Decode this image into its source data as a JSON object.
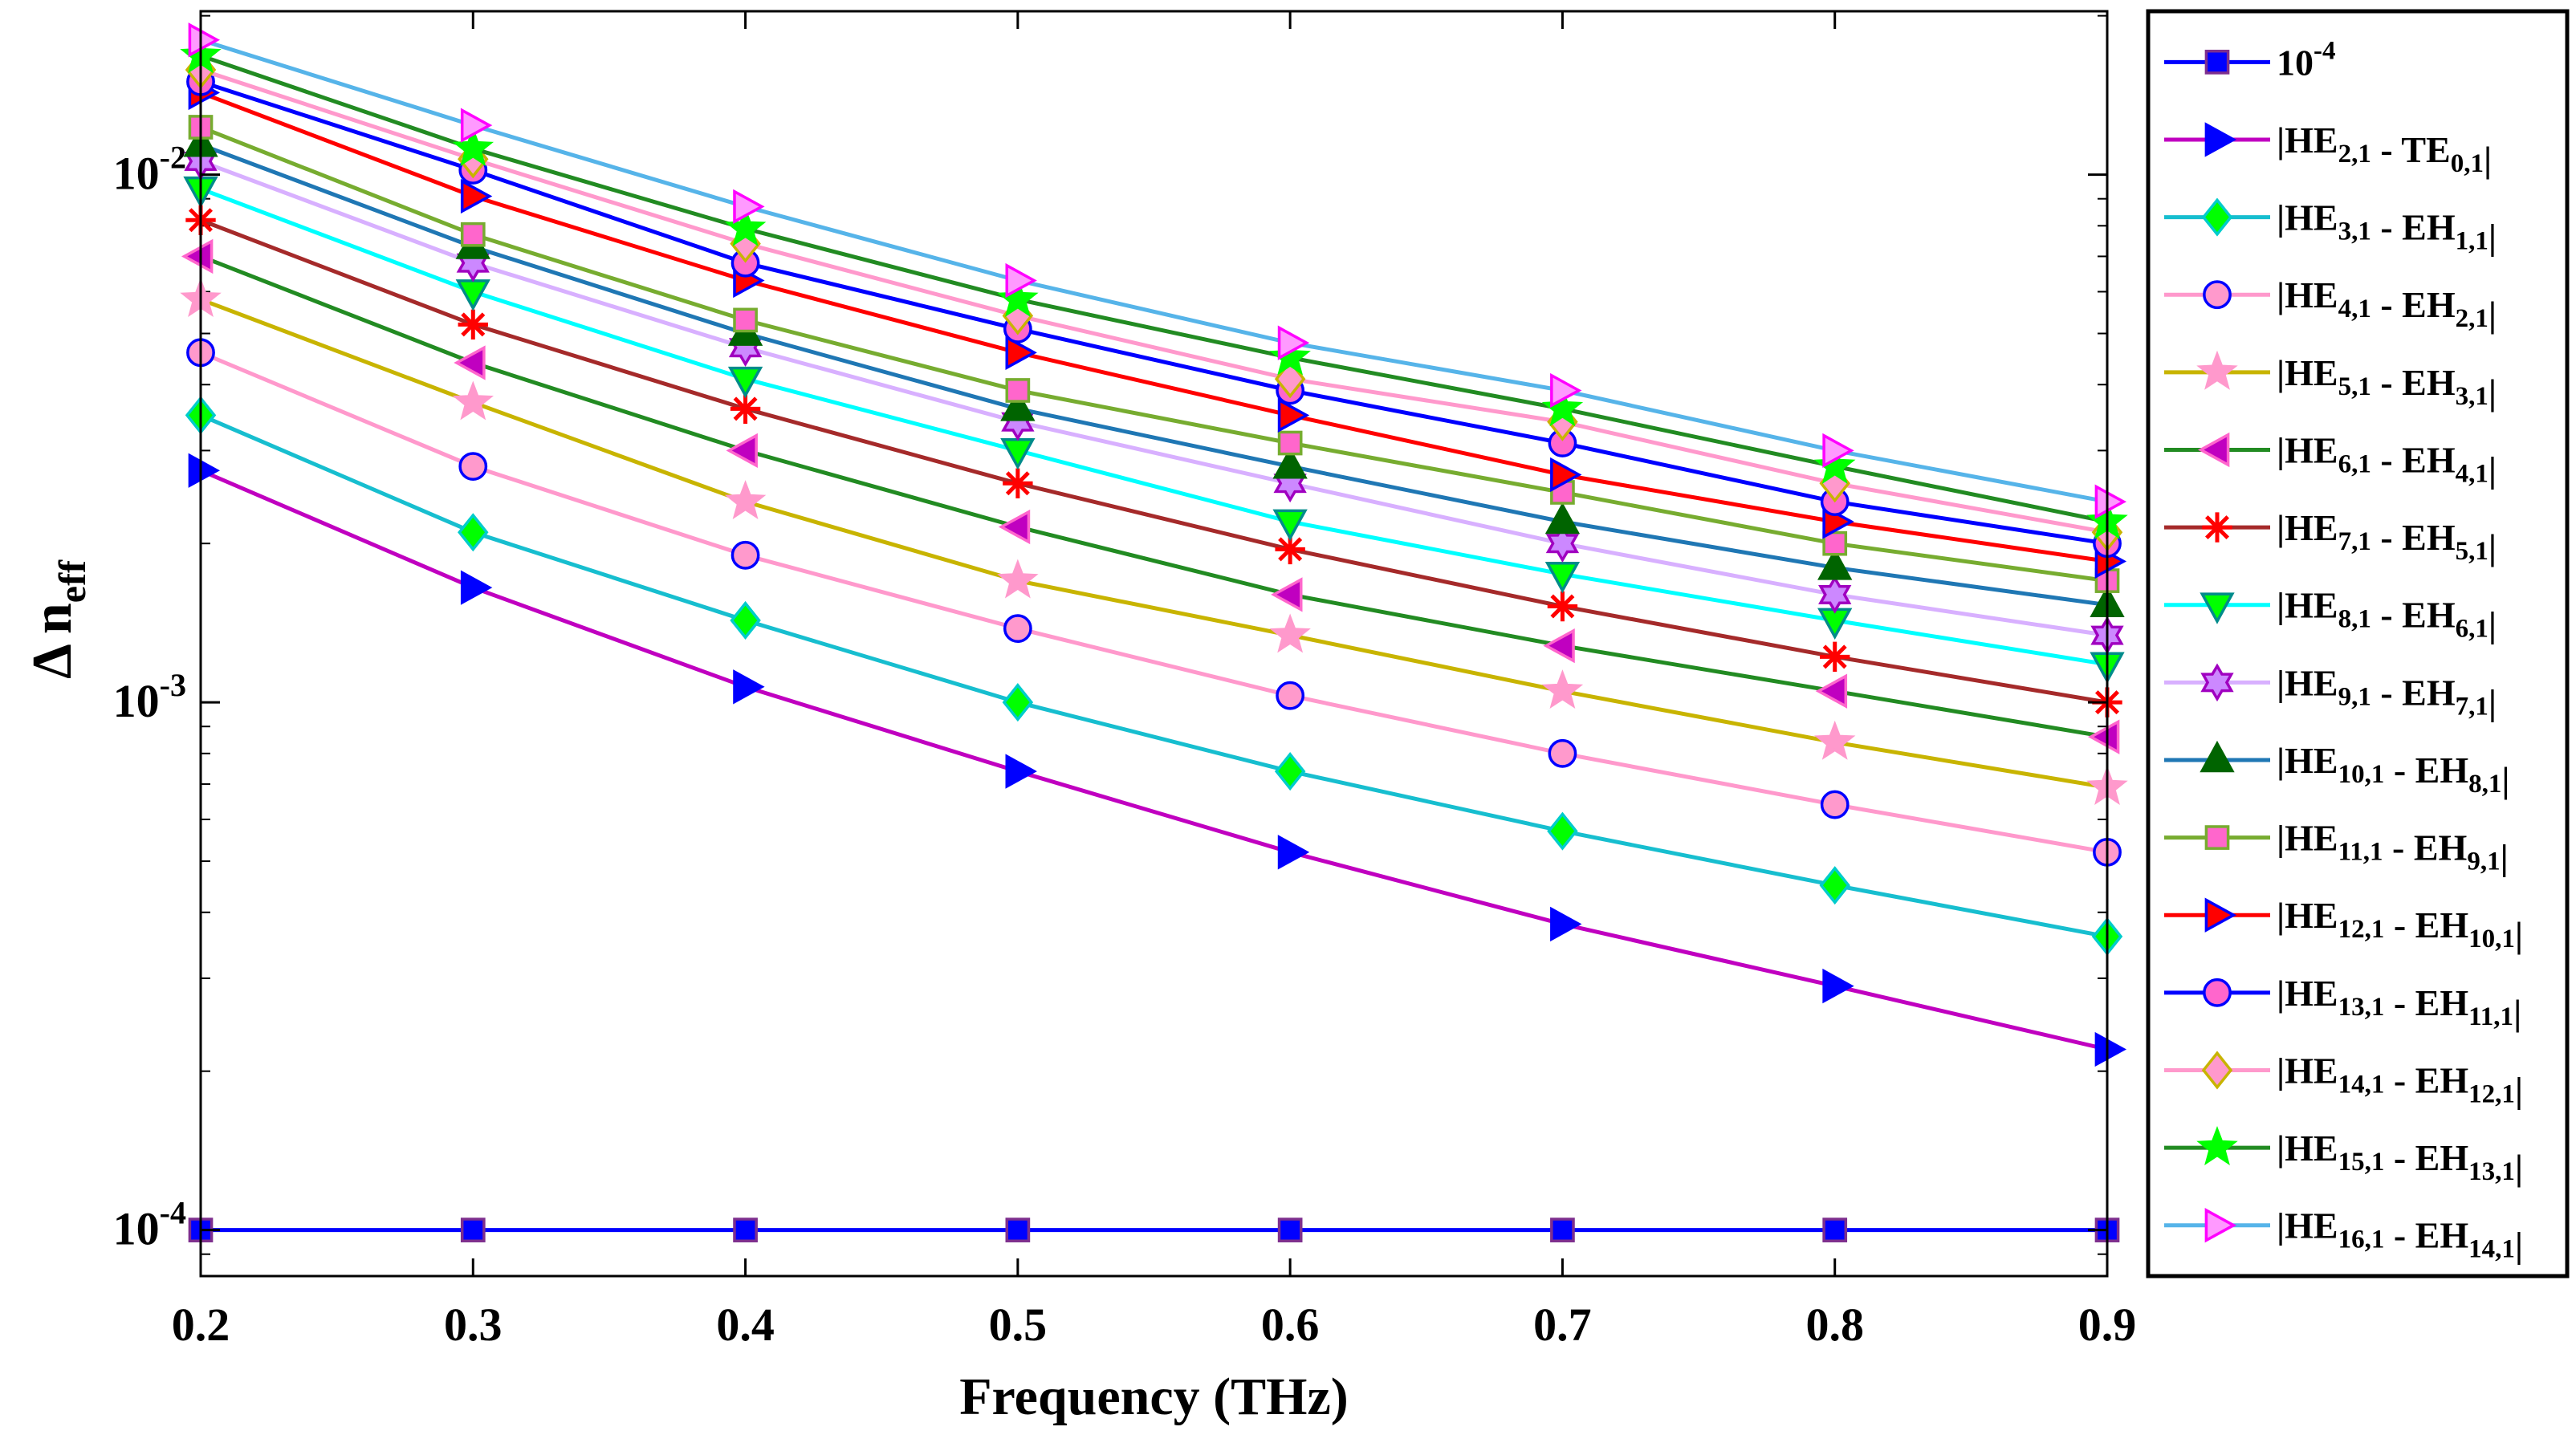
{
  "chart_data": {
    "type": "line",
    "yscale": "log",
    "xlabel": "Frequency (THz)",
    "ylabel": {
      "main": "Δ",
      "base": "n",
      "sub": "eff"
    },
    "x": [
      0.2,
      0.3,
      0.4,
      0.5,
      0.6,
      0.7,
      0.8,
      0.9
    ],
    "xlim": [
      0.2,
      0.9
    ],
    "ylim": [
      8.18e-05,
      0.0204
    ],
    "xticks": [
      {
        "value": 0.2,
        "label": "0.2"
      },
      {
        "value": 0.3,
        "label": "0.3"
      },
      {
        "value": 0.4,
        "label": "0.4"
      },
      {
        "value": 0.5,
        "label": "0.5"
      },
      {
        "value": 0.6,
        "label": "0.6"
      },
      {
        "value": 0.7,
        "label": "0.7"
      },
      {
        "value": 0.8,
        "label": "0.8"
      },
      {
        "value": 0.9,
        "label": "0.9"
      }
    ],
    "yticks": [
      {
        "value": 0.0001,
        "base": "10",
        "exp": "-4"
      },
      {
        "value": 0.001,
        "base": "10",
        "exp": "-3"
      },
      {
        "value": 0.01,
        "base": "10",
        "exp": "-2"
      }
    ],
    "series": [
      {
        "name": "10-4",
        "legend": [
          {
            "t": "10"
          },
          {
            "t": "-4",
            "s": "sup"
          }
        ],
        "color": "#0000ff",
        "marker": "square",
        "markerFill": "#0000ff",
        "markerEdge": "#7e2f8e",
        "values": [
          0.0001,
          0.0001,
          0.0001,
          0.0001,
          0.0001,
          0.0001,
          0.0001,
          0.0001
        ]
      },
      {
        "name": "|HE2,1 - TE0,1|",
        "legend": [
          {
            "t": "|HE"
          },
          {
            "t": "2,1",
            "s": "sub"
          },
          {
            "t": " - TE"
          },
          {
            "t": "0,1",
            "s": "sub"
          },
          {
            "t": "|"
          }
        ],
        "color": "#c000c0",
        "marker": "triangle-right",
        "markerFill": "#0000ff",
        "markerEdge": "#0000ff",
        "values": [
          0.00275,
          0.00165,
          0.00107,
          0.00074,
          0.00052,
          0.00038,
          0.00029,
          0.00022
        ]
      },
      {
        "name": "|HE3,1 - EH1,1|",
        "legend": [
          {
            "t": "|HE"
          },
          {
            "t": "3,1",
            "s": "sub"
          },
          {
            "t": " - EH"
          },
          {
            "t": "1,1",
            "s": "sub"
          },
          {
            "t": "|"
          }
        ],
        "color": "#17becf",
        "marker": "diamond",
        "markerFill": "#00ff00",
        "markerEdge": "#00cccc",
        "values": [
          0.0035,
          0.0021,
          0.00143,
          0.001,
          0.00074,
          0.00057,
          0.00045,
          0.00036
        ]
      },
      {
        "name": "|HE4,1 - EH2,1|",
        "legend": [
          {
            "t": "|HE"
          },
          {
            "t": "4,1",
            "s": "sub"
          },
          {
            "t": " - EH"
          },
          {
            "t": "2,1",
            "s": "sub"
          },
          {
            "t": "|"
          }
        ],
        "color": "#ff99cc",
        "marker": "circle",
        "markerFill": "#ff99cc",
        "markerEdge": "#0000ff",
        "values": [
          0.0046,
          0.0028,
          0.0019,
          0.00138,
          0.00103,
          0.0008,
          0.00064,
          0.00052
        ]
      },
      {
        "name": "|HE5,1 - EH3,1|",
        "legend": [
          {
            "t": "|HE"
          },
          {
            "t": "5,1",
            "s": "sub"
          },
          {
            "t": " - EH"
          },
          {
            "t": "3,1",
            "s": "sub"
          },
          {
            "t": "|"
          }
        ],
        "color": "#c8b400",
        "marker": "star",
        "markerFill": "#ff99cc",
        "markerEdge": "#ff99cc",
        "values": [
          0.0058,
          0.0037,
          0.0024,
          0.0017,
          0.00134,
          0.00105,
          0.00084,
          0.00069
        ]
      },
      {
        "name": "|HE6,1 - EH4,1|",
        "legend": [
          {
            "t": "|HE"
          },
          {
            "t": "6,1",
            "s": "sub"
          },
          {
            "t": " - EH"
          },
          {
            "t": "4,1",
            "s": "sub"
          },
          {
            "t": "|"
          }
        ],
        "color": "#228b22",
        "marker": "triangle-left",
        "markerFill": "#c000c0",
        "markerEdge": "#ff66cc",
        "values": [
          0.007,
          0.0044,
          0.003,
          0.00215,
          0.0016,
          0.00128,
          0.00105,
          0.00086
        ]
      },
      {
        "name": "|HE7,1 - EH5,1|",
        "legend": [
          {
            "t": "|HE"
          },
          {
            "t": "7,1",
            "s": "sub"
          },
          {
            "t": " - EH"
          },
          {
            "t": "5,1",
            "s": "sub"
          },
          {
            "t": "|"
          }
        ],
        "color": "#a52a2a",
        "marker": "asterisk",
        "markerFill": "#ff0000",
        "markerEdge": "#ff0000",
        "values": [
          0.0082,
          0.0052,
          0.0036,
          0.0026,
          0.00195,
          0.00152,
          0.00122,
          0.001
        ]
      },
      {
        "name": "|HE8,1 - EH6,1|",
        "legend": [
          {
            "t": "|HE"
          },
          {
            "t": "8,1",
            "s": "sub"
          },
          {
            "t": " - EH"
          },
          {
            "t": "6,1",
            "s": "sub"
          },
          {
            "t": "|"
          }
        ],
        "color": "#00ffff",
        "marker": "triangle-down",
        "markerFill": "#00ff00",
        "markerEdge": "#008b8b",
        "values": [
          0.0094,
          0.006,
          0.0041,
          0.003,
          0.0022,
          0.00175,
          0.00143,
          0.00118
        ]
      },
      {
        "name": "|HE9,1 - EH7,1|",
        "legend": [
          {
            "t": "|HE"
          },
          {
            "t": "9,1",
            "s": "sub"
          },
          {
            "t": " - EH"
          },
          {
            "t": "7,1",
            "s": "sub"
          },
          {
            "t": "|"
          }
        ],
        "color": "#d8b0ff",
        "marker": "hexagram",
        "markerFill": "#cc88ff",
        "markerEdge": "#a000c0",
        "values": [
          0.0106,
          0.0068,
          0.0047,
          0.0034,
          0.0026,
          0.002,
          0.0016,
          0.00134
        ]
      },
      {
        "name": "|HE10,1 - EH8,1|",
        "legend": [
          {
            "t": "|HE"
          },
          {
            "t": "10,1",
            "s": "sub"
          },
          {
            "t": " - EH"
          },
          {
            "t": "8,1",
            "s": "sub"
          },
          {
            "t": "|"
          }
        ],
        "color": "#1f77b4",
        "marker": "triangle-up",
        "markerFill": "#006400",
        "markerEdge": "#006400",
        "values": [
          0.0114,
          0.0073,
          0.005,
          0.0036,
          0.0028,
          0.0022,
          0.0018,
          0.00153
        ]
      },
      {
        "name": "|HE11,1 - EH9,1|",
        "legend": [
          {
            "t": "|HE"
          },
          {
            "t": "11,1",
            "s": "sub"
          },
          {
            "t": " - EH"
          },
          {
            "t": "9,1",
            "s": "sub"
          },
          {
            "t": "|"
          }
        ],
        "color": "#77ac30",
        "marker": "square",
        "markerFill": "#ff66cc",
        "markerEdge": "#77ac30",
        "values": [
          0.0123,
          0.0077,
          0.0053,
          0.0039,
          0.0031,
          0.0025,
          0.002,
          0.0017
        ]
      },
      {
        "name": "|HE12,1 - EH10,1|",
        "legend": [
          {
            "t": "|HE"
          },
          {
            "t": "12,1",
            "s": "sub"
          },
          {
            "t": " - EH"
          },
          {
            "t": "10,1",
            "s": "sub"
          },
          {
            "t": "|"
          }
        ],
        "color": "#ff0000",
        "marker": "triangle-right",
        "markerFill": "#ff0000",
        "markerEdge": "#0000ff",
        "values": [
          0.0143,
          0.0091,
          0.0063,
          0.0046,
          0.0035,
          0.0027,
          0.0022,
          0.00185
        ]
      },
      {
        "name": "|HE13,1 - EH11,1|",
        "legend": [
          {
            "t": "|HE"
          },
          {
            "t": "13,1",
            "s": "sub"
          },
          {
            "t": " - EH"
          },
          {
            "t": "11,1",
            "s": "sub"
          },
          {
            "t": "|"
          }
        ],
        "color": "#0000ff",
        "marker": "circle",
        "markerFill": "#ff66cc",
        "markerEdge": "#0000ff",
        "values": [
          0.015,
          0.0102,
          0.0068,
          0.0051,
          0.0039,
          0.0031,
          0.0024,
          0.002
        ]
      },
      {
        "name": "|HE14,1 - EH12,1|",
        "legend": [
          {
            "t": "|HE"
          },
          {
            "t": "14,1",
            "s": "sub"
          },
          {
            "t": " - EH"
          },
          {
            "t": "12,1",
            "s": "sub"
          },
          {
            "t": "|"
          }
        ],
        "color": "#ff99cc",
        "marker": "diamond",
        "markerFill": "#ff99cc",
        "markerEdge": "#c8b400",
        "values": [
          0.0158,
          0.0107,
          0.0074,
          0.0054,
          0.0041,
          0.0034,
          0.0026,
          0.0021
        ]
      },
      {
        "name": "|HE15,1 - EH13,1|",
        "legend": [
          {
            "t": "|HE"
          },
          {
            "t": "15,1",
            "s": "sub"
          },
          {
            "t": " - EH"
          },
          {
            "t": "13,1",
            "s": "sub"
          },
          {
            "t": "|"
          }
        ],
        "color": "#228b22",
        "marker": "star",
        "markerFill": "#00ff00",
        "markerEdge": "#00ff00",
        "values": [
          0.0168,
          0.0112,
          0.0079,
          0.0058,
          0.0045,
          0.0036,
          0.0028,
          0.0022
        ]
      },
      {
        "name": "|HE16,1 - EH14,1|",
        "legend": [
          {
            "t": "|HE"
          },
          {
            "t": "16,1",
            "s": "sub"
          },
          {
            "t": " - EH"
          },
          {
            "t": "14,1",
            "s": "sub"
          },
          {
            "t": "|"
          }
        ],
        "color": "#56b4e9",
        "marker": "triangle-right",
        "markerFill": "#ff99ff",
        "markerEdge": "#ff00ff",
        "values": [
          0.018,
          0.0124,
          0.0087,
          0.0063,
          0.0048,
          0.0039,
          0.003,
          0.0024
        ]
      }
    ]
  }
}
